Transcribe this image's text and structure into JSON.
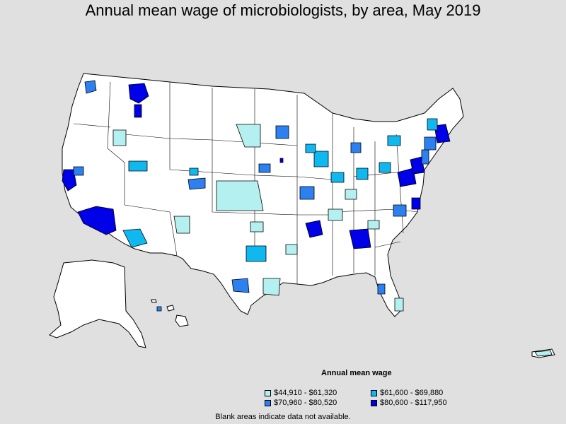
{
  "title": "Annual mean wage of microbiologists, by area, May 2019",
  "legend": {
    "title": "Annual mean wage",
    "items": [
      {
        "label": "$44,910 - $61,320",
        "color": "#b3f0ef"
      },
      {
        "label": "$61,600 - $69,880",
        "color": "#10b8f0"
      },
      {
        "label": "$70,960 - $80,520",
        "color": "#2c80f0"
      },
      {
        "label": "$80,600 - $117,950",
        "color": "#0000e8"
      }
    ]
  },
  "footnote": "Blank areas indicate data not available.",
  "colors": {
    "background": "#e0e0e0",
    "land": "#ffffff",
    "border": "#000000",
    "no_data": "#ffffff"
  }
}
